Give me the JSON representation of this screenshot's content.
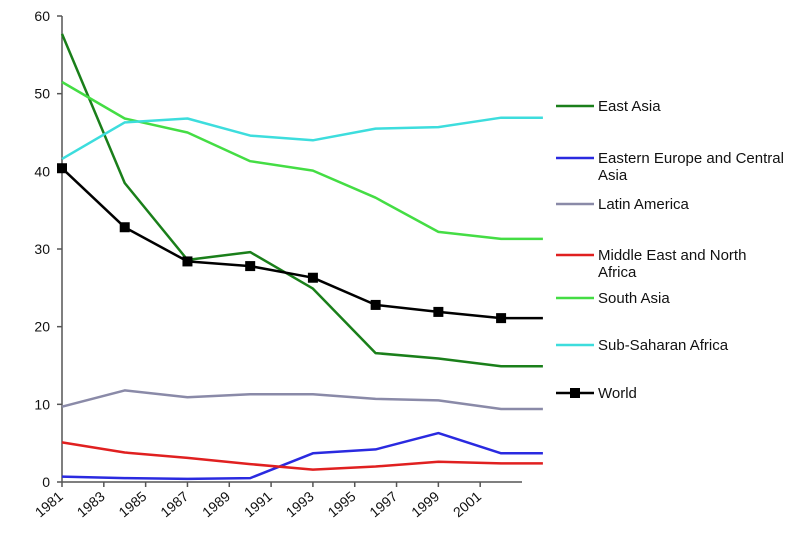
{
  "chart_data": {
    "type": "line",
    "title": "",
    "xlabel": "",
    "ylabel": "",
    "x": [
      1981,
      1984,
      1987,
      1990,
      1993,
      1996,
      1999,
      2002,
      2004
    ],
    "x_tick_labels": [
      "1981",
      "1983",
      "1985",
      "1987",
      "1989",
      "1991",
      "1993",
      "1995",
      "1997",
      "1999",
      "2001"
    ],
    "x_tick_values": [
      1981,
      1983,
      1985,
      1987,
      1989,
      1991,
      1993,
      1995,
      1997,
      1999,
      2001
    ],
    "xlim": [
      1981,
      2003
    ],
    "ylim": [
      0,
      60
    ],
    "y_ticks": [
      0,
      10,
      20,
      30,
      40,
      50,
      60
    ],
    "grid": false,
    "legend_position": "right",
    "series": [
      {
        "name": "East Asia",
        "color": "#1a7f1a",
        "marker": "none",
        "values": [
          57.7,
          38.5,
          28.6,
          29.6,
          24.9,
          16.6,
          15.9,
          14.9,
          14.9
        ]
      },
      {
        "name": "Eastern Europe and Central Asia",
        "color": "#2a2ae0",
        "marker": "none",
        "values": [
          0.7,
          0.5,
          0.4,
          0.5,
          3.7,
          4.2,
          6.3,
          3.7,
          3.7
        ]
      },
      {
        "name": "Latin America",
        "color": "#8a8aa8",
        "marker": "none",
        "values": [
          9.7,
          11.8,
          10.9,
          11.3,
          11.3,
          10.7,
          10.5,
          9.4,
          9.4
        ]
      },
      {
        "name": "Middle East and North Africa",
        "color": "#e02020",
        "marker": "none",
        "values": [
          5.1,
          3.8,
          3.1,
          2.3,
          1.6,
          2.0,
          2.6,
          2.4,
          2.4
        ]
      },
      {
        "name": "South Asia",
        "color": "#44dd44",
        "marker": "none",
        "values": [
          51.5,
          46.8,
          45.0,
          41.3,
          40.1,
          36.6,
          32.2,
          31.3,
          31.3
        ]
      },
      {
        "name": "Sub-Saharan Africa",
        "color": "#3ddddd",
        "marker": "none",
        "values": [
          41.6,
          46.3,
          46.8,
          44.6,
          44.0,
          45.5,
          45.7,
          46.9,
          46.9
        ]
      },
      {
        "name": "World",
        "color": "#000000",
        "marker": "square",
        "values": [
          40.4,
          32.8,
          28.4,
          27.8,
          26.3,
          22.8,
          21.9,
          21.1,
          21.1
        ]
      }
    ]
  }
}
